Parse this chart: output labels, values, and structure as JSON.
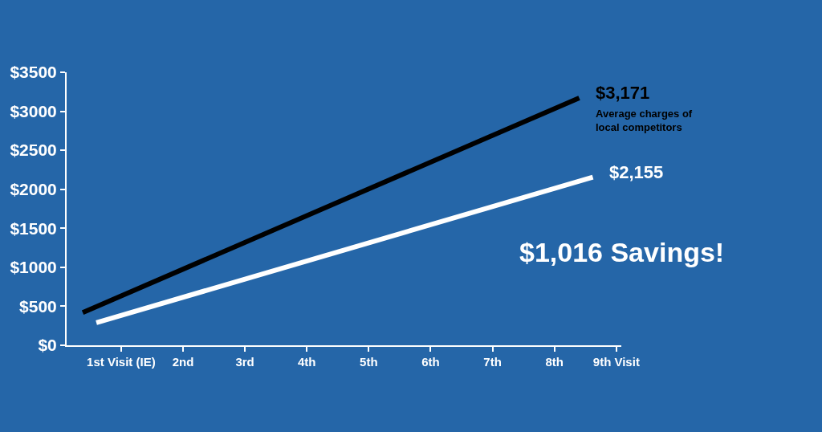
{
  "chart_data": {
    "type": "line",
    "series": [
      {
        "name": "Average charges of local competitors",
        "color": "#000000",
        "x": [
          0.38,
          8.4
        ],
        "values": [
          420,
          3171
        ],
        "value_labels": [
          null,
          "$3,171"
        ]
      },
      {
        "color": "#ffffff",
        "x": [
          0.6,
          8.62
        ],
        "values": [
          290,
          2155
        ],
        "value_labels": [
          null,
          "$2,155"
        ]
      }
    ],
    "xlim": [
      0.12,
      9.08
    ],
    "xticks": [
      {
        "value": 1,
        "label": "1st Visit (IE)"
      },
      {
        "value": 2,
        "label": "2nd"
      },
      {
        "value": 3,
        "label": "3rd"
      },
      {
        "value": 4,
        "label": "4th"
      },
      {
        "value": 5,
        "label": "5th"
      },
      {
        "value": 6,
        "label": "6th"
      },
      {
        "value": 7,
        "label": "7th"
      },
      {
        "value": 8,
        "label": "8th"
      },
      {
        "value": 9,
        "label": "9th Visit"
      }
    ],
    "ylim": [
      0,
      3500
    ],
    "yticks": [
      {
        "value": 0,
        "label": "$0"
      },
      {
        "value": 500,
        "label": "$500"
      },
      {
        "value": 1000,
        "label": "$1000"
      },
      {
        "value": 1500,
        "label": "$1500"
      },
      {
        "value": 2000,
        "label": "$2000"
      },
      {
        "value": 2500,
        "label": "$2500"
      },
      {
        "value": 3000,
        "label": "$3000"
      },
      {
        "value": 3500,
        "label": "$3500"
      }
    ],
    "annotations": [
      "$1,016 Savings!"
    ],
    "grid": false,
    "legend": false,
    "marker": "none",
    "line_style": "solid"
  }
}
